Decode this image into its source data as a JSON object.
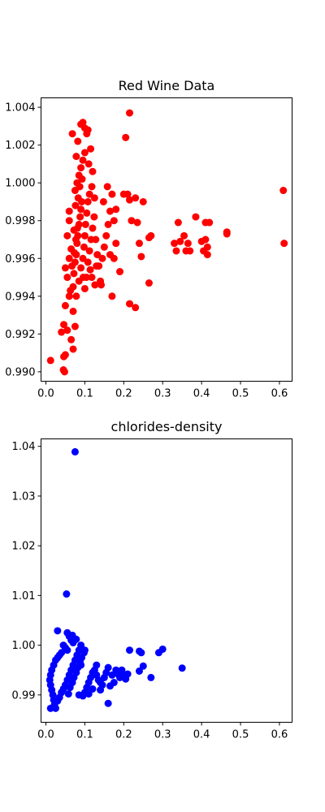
{
  "chart_data": [
    {
      "type": "scatter",
      "title": "Red Wine Data",
      "xlabel": "",
      "ylabel": "",
      "color": "#ff0000",
      "xlim": [
        -0.0125,
        0.6325
      ],
      "ylim": [
        0.9895,
        1.0045
      ],
      "xticks": [
        0.0,
        0.1,
        0.2,
        0.3,
        0.4,
        0.5,
        0.6
      ],
      "xtick_labels": [
        "0.0",
        "0.1",
        "0.2",
        "0.3",
        "0.4",
        "0.5",
        "0.6"
      ],
      "yticks": [
        0.99,
        0.992,
        0.994,
        0.996,
        0.998,
        1.0,
        1.002,
        1.004
      ],
      "ytick_labels": [
        "0.990",
        "0.992",
        "0.994",
        "0.996",
        "0.998",
        "1.000",
        "1.002",
        "1.004"
      ],
      "grid": false,
      "points": [
        [
          0.012,
          0.9906
        ],
        [
          0.045,
          0.9901
        ],
        [
          0.048,
          0.99
        ],
        [
          0.05,
          0.9909
        ],
        [
          0.046,
          0.9908
        ],
        [
          0.04,
          0.9921
        ],
        [
          0.046,
          0.9925
        ],
        [
          0.055,
          0.9922
        ],
        [
          0.065,
          0.9917
        ],
        [
          0.07,
          0.9912
        ],
        [
          0.075,
          0.9924
        ],
        [
          0.05,
          0.9935
        ],
        [
          0.06,
          0.994
        ],
        [
          0.055,
          0.995
        ],
        [
          0.05,
          0.9955
        ],
        [
          0.06,
          0.996
        ],
        [
          0.065,
          0.9965
        ],
        [
          0.055,
          0.9972
        ],
        [
          0.06,
          0.998
        ],
        [
          0.06,
          0.9985
        ],
        [
          0.07,
          0.9945
        ],
        [
          0.072,
          0.9952
        ],
        [
          0.075,
          0.9958
        ],
        [
          0.078,
          0.9962
        ],
        [
          0.08,
          0.9968
        ],
        [
          0.082,
          0.9972
        ],
        [
          0.085,
          0.9978
        ],
        [
          0.088,
          0.9982
        ],
        [
          0.09,
          0.9986
        ],
        [
          0.092,
          0.999
        ],
        [
          0.07,
          0.9932
        ],
        [
          0.078,
          0.994
        ],
        [
          0.085,
          0.9948
        ],
        [
          0.09,
          0.9955
        ],
        [
          0.095,
          0.996
        ],
        [
          0.098,
          0.9966
        ],
        [
          0.1,
          0.9972
        ],
        [
          0.102,
          0.9978
        ],
        [
          0.105,
          0.9984
        ],
        [
          0.108,
          0.999
        ],
        [
          0.075,
          0.9996
        ],
        [
          0.08,
          1.0
        ],
        [
          0.085,
          1.0004
        ],
        [
          0.09,
          1.0008
        ],
        [
          0.095,
          1.0012
        ],
        [
          0.1,
          1.0016
        ],
        [
          0.078,
          1.0014
        ],
        [
          0.082,
          1.0022
        ],
        [
          0.068,
          1.0026
        ],
        [
          0.1,
          1.0029
        ],
        [
          0.09,
          1.0031
        ],
        [
          0.095,
          1.0032
        ],
        [
          0.105,
          1.0026
        ],
        [
          0.108,
          1.0028
        ],
        [
          0.115,
          1.0018
        ],
        [
          0.11,
          1.001
        ],
        [
          0.12,
          1.0006
        ],
        [
          0.118,
          0.9998
        ],
        [
          0.112,
          0.9994
        ],
        [
          0.125,
          0.9992
        ],
        [
          0.072,
          0.9975
        ],
        [
          0.076,
          0.9988
        ],
        [
          0.083,
          0.9992
        ],
        [
          0.087,
          0.9998
        ],
        [
          0.093,
          1.0002
        ],
        [
          0.063,
          0.9943
        ],
        [
          0.067,
          0.9956
        ],
        [
          0.073,
          0.9963
        ],
        [
          0.077,
          0.997
        ],
        [
          0.081,
          0.9976
        ],
        [
          0.096,
          0.995
        ],
        [
          0.1,
          0.9944
        ],
        [
          0.104,
          0.995
        ],
        [
          0.108,
          0.9958
        ],
        [
          0.112,
          0.9964
        ],
        [
          0.116,
          0.997
        ],
        [
          0.12,
          0.9976
        ],
        [
          0.124,
          0.9982
        ],
        [
          0.128,
          0.997
        ],
        [
          0.132,
          0.9962
        ],
        [
          0.136,
          0.9956
        ],
        [
          0.14,
          0.9948
        ],
        [
          0.145,
          0.996
        ],
        [
          0.15,
          0.9966
        ],
        [
          0.155,
          0.9972
        ],
        [
          0.16,
          0.9978
        ],
        [
          0.165,
          0.9985
        ],
        [
          0.17,
          0.9994
        ],
        [
          0.158,
          0.9998
        ],
        [
          0.148,
          0.999
        ],
        [
          0.142,
          0.9946
        ],
        [
          0.13,
          0.9956
        ],
        [
          0.126,
          0.9946
        ],
        [
          0.118,
          0.995
        ],
        [
          0.114,
          0.9954
        ],
        [
          0.17,
          0.994
        ],
        [
          0.165,
          0.9962
        ],
        [
          0.175,
          0.996
        ],
        [
          0.18,
          0.9968
        ],
        [
          0.19,
          0.9953
        ],
        [
          0.175,
          0.998
        ],
        [
          0.18,
          0.9986
        ],
        [
          0.2,
          0.9994
        ],
        [
          0.21,
          0.9994
        ],
        [
          0.215,
          0.9991
        ],
        [
          0.23,
          0.9992
        ],
        [
          0.25,
          0.999
        ],
        [
          0.22,
          0.998
        ],
        [
          0.235,
          0.9979
        ],
        [
          0.24,
          0.9968
        ],
        [
          0.245,
          0.9961
        ],
        [
          0.265,
          0.9971
        ],
        [
          0.27,
          0.9972
        ],
        [
          0.265,
          0.9947
        ],
        [
          0.215,
          0.9936
        ],
        [
          0.23,
          0.9934
        ],
        [
          0.205,
          1.0024
        ],
        [
          0.215,
          1.0037
        ],
        [
          0.33,
          0.9968
        ],
        [
          0.335,
          0.9964
        ],
        [
          0.345,
          0.9969
        ],
        [
          0.34,
          0.9979
        ],
        [
          0.355,
          0.9972
        ],
        [
          0.36,
          0.9964
        ],
        [
          0.365,
          0.9968
        ],
        [
          0.37,
          0.9964
        ],
        [
          0.385,
          0.9982
        ],
        [
          0.4,
          0.9969
        ],
        [
          0.405,
          0.9964
        ],
        [
          0.41,
          0.997
        ],
        [
          0.41,
          0.9979
        ],
        [
          0.42,
          0.9979
        ],
        [
          0.415,
          0.9962
        ],
        [
          0.415,
          0.9966
        ],
        [
          0.465,
          0.9973
        ],
        [
          0.465,
          0.9974
        ],
        [
          0.61,
          0.9996
        ],
        [
          0.612,
          0.9968
        ]
      ]
    },
    {
      "type": "scatter",
      "title": "chlorides-density",
      "xlabel": "",
      "ylabel": "",
      "color": "#0000ff",
      "xlim": [
        -0.0125,
        0.6325
      ],
      "ylim": [
        0.9845,
        1.0415
      ],
      "xticks": [
        0.0,
        0.1,
        0.2,
        0.3,
        0.4,
        0.5,
        0.6
      ],
      "xtick_labels": [
        "0.0",
        "0.1",
        "0.2",
        "0.3",
        "0.4",
        "0.5",
        "0.6"
      ],
      "yticks": [
        0.99,
        1.0,
        1.01,
        1.02,
        1.03,
        1.04
      ],
      "ytick_labels": [
        "0.99",
        "1.00",
        "1.01",
        "1.02",
        "1.03",
        "1.04"
      ],
      "grid": false,
      "points": [
        [
          0.075,
          1.0389
        ],
        [
          0.053,
          1.0103
        ],
        [
          0.03,
          1.0029
        ],
        [
          0.055,
          1.0025
        ],
        [
          0.06,
          1.0018
        ],
        [
          0.065,
          1.001
        ],
        [
          0.07,
          1.0005
        ],
        [
          0.045,
          1.0
        ],
        [
          0.05,
          0.9995
        ],
        [
          0.055,
          0.999
        ],
        [
          0.04,
          0.9985
        ],
        [
          0.035,
          0.998
        ],
        [
          0.03,
          0.9975
        ],
        [
          0.025,
          0.997
        ],
        [
          0.02,
          0.996
        ],
        [
          0.015,
          0.995
        ],
        [
          0.012,
          0.994
        ],
        [
          0.01,
          0.993
        ],
        [
          0.012,
          0.992
        ],
        [
          0.015,
          0.991
        ],
        [
          0.018,
          0.99
        ],
        [
          0.02,
          0.989
        ],
        [
          0.022,
          0.988
        ],
        [
          0.025,
          0.9873
        ],
        [
          0.012,
          0.9873
        ],
        [
          0.03,
          0.9888
        ],
        [
          0.035,
          0.9895
        ],
        [
          0.04,
          0.9905
        ],
        [
          0.045,
          0.9912
        ],
        [
          0.05,
          0.992
        ],
        [
          0.055,
          0.993
        ],
        [
          0.06,
          0.994
        ],
        [
          0.065,
          0.995
        ],
        [
          0.07,
          0.996
        ],
        [
          0.075,
          0.997
        ],
        [
          0.08,
          0.998
        ],
        [
          0.085,
          0.999
        ],
        [
          0.09,
          1.0
        ],
        [
          0.078,
          1.0012
        ],
        [
          0.068,
          1.002
        ],
        [
          0.058,
          0.9902
        ],
        [
          0.062,
          0.9915
        ],
        [
          0.068,
          0.9925
        ],
        [
          0.072,
          0.9935
        ],
        [
          0.078,
          0.9945
        ],
        [
          0.082,
          0.9955
        ],
        [
          0.088,
          0.9965
        ],
        [
          0.092,
          0.9975
        ],
        [
          0.098,
          0.9985
        ],
        [
          0.1,
          0.999
        ],
        [
          0.085,
          0.99
        ],
        [
          0.095,
          0.9898
        ],
        [
          0.1,
          0.9905
        ],
        [
          0.105,
          0.9915
        ],
        [
          0.11,
          0.9925
        ],
        [
          0.115,
          0.9935
        ],
        [
          0.12,
          0.9945
        ],
        [
          0.125,
          0.995
        ],
        [
          0.13,
          0.994
        ],
        [
          0.135,
          0.993
        ],
        [
          0.14,
          0.9925
        ],
        [
          0.145,
          0.992
        ],
        [
          0.15,
          0.9935
        ],
        [
          0.155,
          0.9945
        ],
        [
          0.16,
          0.9955
        ],
        [
          0.17,
          0.994
        ],
        [
          0.18,
          0.995
        ],
        [
          0.19,
          0.9935
        ],
        [
          0.2,
          0.994
        ],
        [
          0.205,
          0.9932
        ],
        [
          0.21,
          0.9942
        ],
        [
          0.215,
          0.999
        ],
        [
          0.24,
          0.9988
        ],
        [
          0.245,
          0.9985
        ],
        [
          0.25,
          0.9958
        ],
        [
          0.24,
          0.9948
        ],
        [
          0.27,
          0.9935
        ],
        [
          0.29,
          0.9985
        ],
        [
          0.3,
          0.9992
        ],
        [
          0.35,
          0.9954
        ],
        [
          0.16,
          0.9883
        ],
        [
          0.14,
          0.991
        ],
        [
          0.12,
          0.9912
        ],
        [
          0.11,
          0.9902
        ],
        [
          0.165,
          0.9918
        ],
        [
          0.175,
          0.9925
        ],
        [
          0.185,
          0.9942
        ],
        [
          0.195,
          0.995
        ],
        [
          0.13,
          0.996
        ],
        [
          0.09,
          0.996
        ]
      ]
    }
  ]
}
